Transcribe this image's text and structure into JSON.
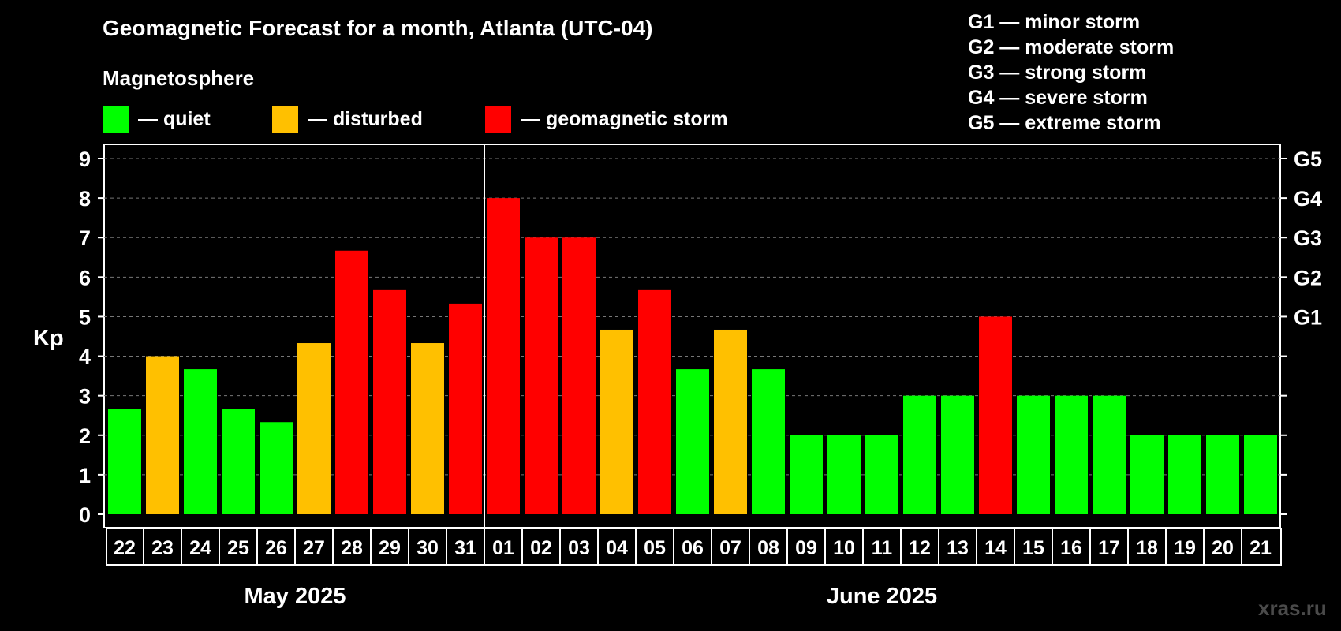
{
  "title": "Geomagnetic Forecast for a month, Atlanta (UTC-04)",
  "section_label": "Magnetosphere",
  "legend": [
    {
      "label": "— quiet",
      "color": "#00ff00"
    },
    {
      "label": "— disturbed",
      "color": "#ffc000"
    },
    {
      "label": "— geomagnetic storm",
      "color": "#ff0000"
    }
  ],
  "storm_legend": [
    "G1 — minor storm",
    "G2 — moderate storm",
    "G3 — strong storm",
    "G4 — severe storm",
    "G5 — extreme storm"
  ],
  "watermark": "xras.ru",
  "chart_data": {
    "type": "bar",
    "ylabel": "Kp",
    "ylim": [
      0,
      9
    ],
    "yticks": [
      "0",
      "1",
      "2",
      "3",
      "4",
      "5",
      "6",
      "7",
      "8",
      "9"
    ],
    "right_axis_labels": [
      {
        "kp": 5,
        "label": "G1"
      },
      {
        "kp": 6,
        "label": "G2"
      },
      {
        "kp": 7,
        "label": "G3"
      },
      {
        "kp": 8,
        "label": "G4"
      },
      {
        "kp": 9,
        "label": "G5"
      }
    ],
    "grid": "horizontal dashed",
    "categories": [
      "22",
      "23",
      "24",
      "25",
      "26",
      "27",
      "28",
      "29",
      "30",
      "31",
      "01",
      "02",
      "03",
      "04",
      "05",
      "06",
      "07",
      "08",
      "09",
      "10",
      "11",
      "12",
      "13",
      "14",
      "15",
      "16",
      "17",
      "18",
      "19",
      "20",
      "21"
    ],
    "values": [
      2.67,
      4,
      3.67,
      2.67,
      2.33,
      4.33,
      6.67,
      5.67,
      4.33,
      5.33,
      8,
      7,
      7,
      4.67,
      5.67,
      3.67,
      4.67,
      3.67,
      2,
      2,
      2,
      3,
      3,
      5,
      3,
      3,
      3,
      2,
      2,
      2,
      2
    ],
    "levels": [
      "quiet",
      "disturbed",
      "quiet",
      "quiet",
      "quiet",
      "disturbed",
      "storm",
      "storm",
      "disturbed",
      "storm",
      "storm",
      "storm",
      "storm",
      "disturbed",
      "storm",
      "quiet",
      "disturbed",
      "quiet",
      "quiet",
      "quiet",
      "quiet",
      "quiet",
      "quiet",
      "storm",
      "quiet",
      "quiet",
      "quiet",
      "quiet",
      "quiet",
      "quiet",
      "quiet"
    ],
    "level_colors": {
      "quiet": "#00ff00",
      "disturbed": "#ffc000",
      "storm": "#ff0000"
    },
    "months": [
      {
        "label": "May 2025",
        "count": 10
      },
      {
        "label": "June 2025",
        "count": 21
      }
    ]
  }
}
